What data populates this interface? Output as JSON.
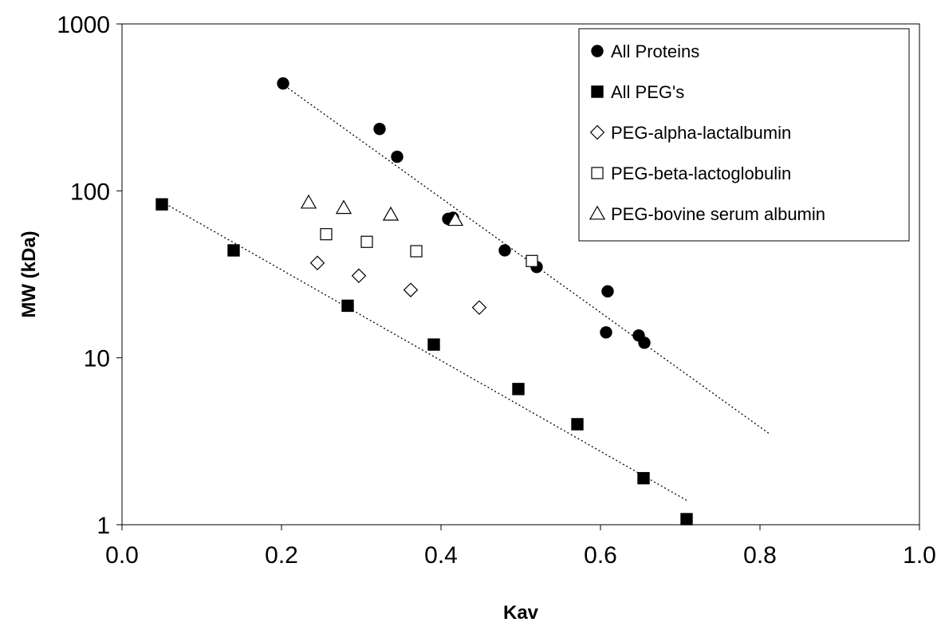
{
  "chart_data": {
    "type": "scatter",
    "title": "",
    "xlabel": "Kav",
    "ylabel": "MW (kDa)",
    "xlim": [
      0.0,
      1.0
    ],
    "ylim": [
      1,
      1000
    ],
    "y_scale": "log",
    "x_ticks": [
      "0.0",
      "0.2",
      "0.4",
      "0.6",
      "0.8",
      "1.0"
    ],
    "y_ticks": [
      "1",
      "10",
      "100",
      "1000"
    ],
    "grid": false,
    "legend_position": "top-right",
    "series": [
      {
        "name": "All Proteins",
        "marker": "filled-circle",
        "points": [
          [
            0.202,
            440
          ],
          [
            0.323,
            235
          ],
          [
            0.345,
            160
          ],
          [
            0.409,
            68
          ],
          [
            0.415,
            69
          ],
          [
            0.48,
            44
          ],
          [
            0.52,
            35
          ],
          [
            0.607,
            14.2
          ],
          [
            0.609,
            25
          ],
          [
            0.648,
            13.6
          ],
          [
            0.655,
            12.3
          ]
        ]
      },
      {
        "name": "All PEG's",
        "marker": "filled-square",
        "points": [
          [
            0.05,
            83
          ],
          [
            0.14,
            44
          ],
          [
            0.283,
            20.5
          ],
          [
            0.391,
            12
          ],
          [
            0.497,
            6.5
          ],
          [
            0.571,
            4
          ],
          [
            0.654,
            1.9
          ],
          [
            0.708,
            1.08
          ]
        ]
      },
      {
        "name": "PEG-alpha-lactalbumin",
        "marker": "open-diamond",
        "points": [
          [
            0.245,
            37
          ],
          [
            0.297,
            31
          ],
          [
            0.362,
            25.5
          ],
          [
            0.448,
            20
          ]
        ]
      },
      {
        "name": "PEG-beta-lactoglobulin",
        "marker": "open-square",
        "points": [
          [
            0.256,
            55
          ],
          [
            0.307,
            49.5
          ],
          [
            0.369,
            43.5
          ],
          [
            0.514,
            38
          ]
        ]
      },
      {
        "name": "PEG-bovine serum albumin",
        "marker": "open-triangle",
        "points": [
          [
            0.234,
            85
          ],
          [
            0.278,
            79
          ],
          [
            0.337,
            72
          ],
          [
            0.418,
            67
          ]
        ]
      }
    ],
    "trendlines": [
      {
        "series": "All Proteins",
        "style": "dotted",
        "from": [
          0.2,
          440
        ],
        "to": [
          0.812,
          3.5
        ]
      },
      {
        "series": "All PEG's",
        "style": "dotted",
        "from": [
          0.05,
          86
        ],
        "to": [
          0.708,
          1.4
        ]
      }
    ]
  }
}
